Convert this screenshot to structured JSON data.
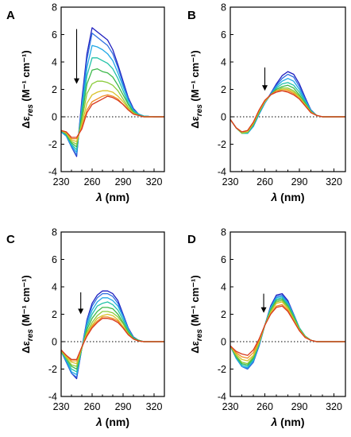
{
  "chart_data": [
    {
      "type": "line",
      "panel": "A",
      "xlabel_symbol": "λ",
      "xlabel_unit": " (nm)",
      "ylabel_main": "Δε",
      "ylabel_sub": "res",
      "ylabel_unit": " (M⁻¹ cm⁻¹)",
      "xlim": [
        230,
        330
      ],
      "ylim": [
        -4,
        8
      ],
      "xticks": [
        230,
        260,
        290,
        320
      ],
      "yticks": [
        -4,
        -2,
        0,
        2,
        4,
        6,
        8
      ],
      "zero_line": "dotted",
      "arrow": {
        "x": 245,
        "y_from": 6.4,
        "y_to": 2.4,
        "direction": "down"
      },
      "x": [
        230,
        235,
        240,
        245,
        250,
        255,
        260,
        265,
        270,
        275,
        280,
        285,
        290,
        295,
        300,
        305,
        310,
        320,
        330
      ],
      "colors": [
        "#1f1fbf",
        "#2f6fe0",
        "#20a8e6",
        "#22c2a8",
        "#3cb84a",
        "#8acb3a",
        "#d9c22a",
        "#ee8a22",
        "#d83a20"
      ],
      "series": [
        {
          "values": [
            -1.1,
            -1.4,
            -2.2,
            -2.9,
            1.2,
            4.6,
            6.5,
            6.2,
            5.9,
            5.6,
            4.9,
            3.8,
            2.6,
            1.4,
            0.6,
            0.2,
            0.05,
            0.0,
            0.0
          ]
        },
        {
          "values": [
            -1.1,
            -1.4,
            -2.2,
            -2.8,
            0.9,
            4.2,
            6.1,
            5.8,
            5.5,
            5.2,
            4.6,
            3.6,
            2.4,
            1.3,
            0.5,
            0.2,
            0.05,
            0.0,
            0.0
          ]
        },
        {
          "values": [
            -1.1,
            -1.4,
            -2.1,
            -2.6,
            0.6,
            3.6,
            5.2,
            5.1,
            4.9,
            4.6,
            4.1,
            3.2,
            2.2,
            1.2,
            0.5,
            0.2,
            0.05,
            0.0,
            0.0
          ]
        },
        {
          "values": [
            -1.0,
            -1.3,
            -2.0,
            -2.4,
            0.3,
            3.0,
            4.3,
            4.3,
            4.1,
            3.9,
            3.5,
            2.8,
            1.9,
            1.0,
            0.4,
            0.15,
            0.05,
            0.0,
            0.0
          ]
        },
        {
          "values": [
            -1.0,
            -1.3,
            -1.9,
            -2.2,
            0.0,
            2.4,
            3.4,
            3.5,
            3.3,
            3.2,
            2.9,
            2.3,
            1.6,
            0.9,
            0.35,
            0.1,
            0.0,
            0.0,
            0.0
          ]
        },
        {
          "values": [
            -1.0,
            -1.2,
            -1.8,
            -2.0,
            -0.3,
            1.7,
            2.4,
            2.6,
            2.6,
            2.5,
            2.3,
            1.9,
            1.3,
            0.7,
            0.3,
            0.1,
            0.0,
            0.0,
            0.0
          ]
        },
        {
          "values": [
            -1.0,
            -1.2,
            -1.7,
            -1.8,
            -0.6,
            1.0,
            1.6,
            1.8,
            1.9,
            1.9,
            1.8,
            1.5,
            1.1,
            0.6,
            0.25,
            0.1,
            0.0,
            0.0,
            0.0
          ]
        },
        {
          "values": [
            -1.0,
            -1.1,
            -1.6,
            -1.6,
            -0.8,
            0.5,
            1.1,
            1.3,
            1.5,
            1.6,
            1.5,
            1.3,
            0.9,
            0.5,
            0.2,
            0.1,
            0.0,
            0.0,
            0.0
          ]
        },
        {
          "values": [
            -1.0,
            -1.1,
            -1.5,
            -1.5,
            -0.9,
            0.3,
            0.9,
            1.1,
            1.3,
            1.5,
            1.4,
            1.2,
            0.9,
            0.5,
            0.2,
            0.1,
            0.0,
            0.0,
            0.0
          ]
        }
      ]
    },
    {
      "type": "line",
      "panel": "B",
      "xlabel_symbol": "λ",
      "xlabel_unit": " (nm)",
      "ylabel_main": "Δε",
      "ylabel_sub": "res",
      "ylabel_unit": " (M⁻¹ cm⁻¹)",
      "xlim": [
        230,
        330
      ],
      "ylim": [
        -4,
        8
      ],
      "xticks": [
        230,
        260,
        290,
        320
      ],
      "yticks": [
        -4,
        -2,
        0,
        2,
        4,
        6,
        8
      ],
      "zero_line": "dotted",
      "arrow": {
        "x": 260,
        "y_from": 3.6,
        "y_to": 1.9,
        "direction": "down"
      },
      "x": [
        230,
        235,
        240,
        245,
        250,
        255,
        260,
        265,
        270,
        275,
        280,
        285,
        290,
        295,
        300,
        305,
        310,
        320,
        330
      ],
      "colors": [
        "#1f1fbf",
        "#2f6fe0",
        "#20a8e6",
        "#22c2a8",
        "#3cb84a",
        "#8acb3a",
        "#d9c22a",
        "#ee8a22",
        "#d83a20"
      ],
      "series": [
        {
          "values": [
            -0.2,
            -0.8,
            -1.2,
            -1.2,
            -0.7,
            0.2,
            1.0,
            1.7,
            2.4,
            3.0,
            3.3,
            3.1,
            2.4,
            1.4,
            0.5,
            0.1,
            0.0,
            0.0,
            0.0
          ]
        },
        {
          "values": [
            -0.2,
            -0.8,
            -1.2,
            -1.2,
            -0.7,
            0.2,
            1.0,
            1.7,
            2.3,
            2.8,
            3.1,
            2.9,
            2.2,
            1.3,
            0.5,
            0.1,
            0.0,
            0.0,
            0.0
          ]
        },
        {
          "values": [
            -0.2,
            -0.8,
            -1.2,
            -1.2,
            -0.7,
            0.2,
            1.0,
            1.6,
            2.2,
            2.6,
            2.8,
            2.6,
            2.0,
            1.2,
            0.45,
            0.1,
            0.0,
            0.0,
            0.0
          ]
        },
        {
          "values": [
            -0.2,
            -0.8,
            -1.2,
            -1.2,
            -0.6,
            0.3,
            1.1,
            1.6,
            2.1,
            2.4,
            2.5,
            2.3,
            1.8,
            1.1,
            0.4,
            0.1,
            0.0,
            0.0,
            0.0
          ]
        },
        {
          "values": [
            -0.2,
            -0.8,
            -1.2,
            -1.1,
            -0.6,
            0.3,
            1.1,
            1.6,
            2.0,
            2.2,
            2.3,
            2.1,
            1.6,
            1.0,
            0.4,
            0.1,
            0.0,
            0.0,
            0.0
          ]
        },
        {
          "values": [
            -0.2,
            -0.8,
            -1.2,
            -1.1,
            -0.5,
            0.4,
            1.1,
            1.6,
            1.9,
            2.1,
            2.1,
            1.9,
            1.5,
            0.9,
            0.35,
            0.1,
            0.0,
            0.0,
            0.0
          ]
        },
        {
          "values": [
            -0.2,
            -0.8,
            -1.1,
            -1.1,
            -0.5,
            0.4,
            1.1,
            1.6,
            1.9,
            2.0,
            2.0,
            1.8,
            1.4,
            0.9,
            0.35,
            0.1,
            0.0,
            0.0,
            0.0
          ]
        },
        {
          "values": [
            -0.2,
            -0.8,
            -1.1,
            -1.0,
            -0.4,
            0.5,
            1.2,
            1.6,
            1.9,
            1.9,
            1.9,
            1.7,
            1.3,
            0.8,
            0.3,
            0.1,
            0.0,
            0.0,
            0.0
          ]
        },
        {
          "values": [
            -0.2,
            -0.8,
            -1.1,
            -1.0,
            -0.4,
            0.5,
            1.2,
            1.6,
            1.8,
            1.9,
            1.8,
            1.6,
            1.3,
            0.8,
            0.3,
            0.1,
            0.0,
            0.0,
            0.0
          ]
        }
      ]
    },
    {
      "type": "line",
      "panel": "C",
      "xlabel_symbol": "λ",
      "xlabel_unit": " (nm)",
      "ylabel_main": "Δε",
      "ylabel_sub": "res",
      "ylabel_unit": " (M⁻¹ cm⁻¹)",
      "xlim": [
        230,
        330
      ],
      "ylim": [
        -4,
        8
      ],
      "xticks": [
        230,
        260,
        290,
        320
      ],
      "yticks": [
        -4,
        -2,
        0,
        2,
        4,
        6,
        8
      ],
      "zero_line": "dotted",
      "arrow": {
        "x": 249,
        "y_from": 3.6,
        "y_to": 2.0,
        "direction": "down"
      },
      "x": [
        230,
        235,
        240,
        245,
        250,
        255,
        260,
        265,
        270,
        275,
        280,
        285,
        290,
        295,
        300,
        305,
        310,
        320,
        330
      ],
      "colors": [
        "#1f1fbf",
        "#2f6fe0",
        "#20a8e6",
        "#22c2a8",
        "#3cb84a",
        "#8acb3a",
        "#d9c22a",
        "#ee8a22",
        "#d83a20"
      ],
      "series": [
        {
          "values": [
            -0.7,
            -1.5,
            -2.3,
            -2.7,
            -0.5,
            1.6,
            2.8,
            3.4,
            3.7,
            3.7,
            3.5,
            3.0,
            2.0,
            1.0,
            0.35,
            0.1,
            0.0,
            0.0,
            0.0
          ]
        },
        {
          "values": [
            -0.7,
            -1.5,
            -2.3,
            -2.6,
            -0.5,
            1.5,
            2.6,
            3.2,
            3.5,
            3.5,
            3.3,
            2.8,
            1.9,
            0.95,
            0.3,
            0.1,
            0.0,
            0.0,
            0.0
          ]
        },
        {
          "values": [
            -0.7,
            -1.4,
            -2.2,
            -2.4,
            -0.5,
            1.3,
            2.3,
            2.9,
            3.2,
            3.2,
            3.0,
            2.6,
            1.8,
            0.9,
            0.3,
            0.1,
            0.0,
            0.0,
            0.0
          ]
        },
        {
          "values": [
            -0.7,
            -1.3,
            -2.0,
            -2.2,
            -0.5,
            1.1,
            2.0,
            2.6,
            2.8,
            2.9,
            2.7,
            2.3,
            1.6,
            0.8,
            0.3,
            0.1,
            0.0,
            0.0,
            0.0
          ]
        },
        {
          "values": [
            -0.7,
            -1.2,
            -1.8,
            -2.0,
            -0.5,
            0.9,
            1.7,
            2.2,
            2.5,
            2.5,
            2.4,
            2.0,
            1.4,
            0.7,
            0.25,
            0.1,
            0.0,
            0.0,
            0.0
          ]
        },
        {
          "values": [
            -0.7,
            -1.2,
            -1.7,
            -1.8,
            -0.5,
            0.7,
            1.4,
            1.9,
            2.2,
            2.2,
            2.1,
            1.8,
            1.3,
            0.6,
            0.2,
            0.05,
            0.0,
            0.0,
            0.0
          ]
        },
        {
          "values": [
            -0.6,
            -1.1,
            -1.5,
            -1.6,
            -0.4,
            0.6,
            1.2,
            1.7,
            1.9,
            2.0,
            1.9,
            1.6,
            1.1,
            0.55,
            0.2,
            0.05,
            0.0,
            0.0,
            0.0
          ]
        },
        {
          "values": [
            -0.6,
            -1.0,
            -1.4,
            -1.4,
            -0.4,
            0.5,
            1.1,
            1.5,
            1.8,
            1.8,
            1.7,
            1.5,
            1.0,
            0.5,
            0.2,
            0.05,
            0.0,
            0.0,
            0.0
          ]
        },
        {
          "values": [
            -0.6,
            -1.0,
            -1.3,
            -1.3,
            -0.4,
            0.4,
            1.0,
            1.4,
            1.7,
            1.7,
            1.6,
            1.4,
            1.0,
            0.5,
            0.2,
            0.05,
            0.0,
            0.0,
            0.0
          ]
        }
      ]
    },
    {
      "type": "line",
      "panel": "D",
      "xlabel_symbol": "λ",
      "xlabel_unit": " (nm)",
      "ylabel_main": "Δε",
      "ylabel_sub": "res",
      "ylabel_unit": " (M⁻¹ cm⁻¹)",
      "xlim": [
        230,
        330
      ],
      "ylim": [
        -4,
        8
      ],
      "xticks": [
        230,
        260,
        290,
        320
      ],
      "yticks": [
        -4,
        -2,
        0,
        2,
        4,
        6,
        8
      ],
      "zero_line": "dotted",
      "arrow": {
        "x": 259,
        "y_from": 3.5,
        "y_to": 2.1,
        "direction": "down"
      },
      "x": [
        230,
        235,
        240,
        245,
        250,
        255,
        260,
        265,
        270,
        275,
        280,
        285,
        290,
        295,
        300,
        305,
        310,
        320,
        330
      ],
      "colors": [
        "#1f1fbf",
        "#2f6fe0",
        "#20a8e6",
        "#22c2a8",
        "#3cb84a",
        "#8acb3a",
        "#d9c22a",
        "#ee8a22",
        "#d83a20"
      ],
      "series": [
        {
          "values": [
            -0.3,
            -1.2,
            -1.8,
            -2.0,
            -1.5,
            -0.3,
            1.2,
            2.6,
            3.4,
            3.5,
            3.0,
            2.0,
            1.0,
            0.4,
            0.1,
            0.0,
            0.0,
            0.0,
            0.0
          ]
        },
        {
          "values": [
            -0.3,
            -1.2,
            -1.8,
            -2.0,
            -1.5,
            -0.3,
            1.2,
            2.5,
            3.3,
            3.4,
            2.9,
            2.0,
            1.0,
            0.4,
            0.1,
            0.0,
            0.0,
            0.0,
            0.0
          ]
        },
        {
          "values": [
            -0.3,
            -1.2,
            -1.8,
            -1.9,
            -1.4,
            -0.2,
            1.2,
            2.5,
            3.2,
            3.3,
            2.8,
            1.9,
            1.0,
            0.4,
            0.1,
            0.0,
            0.0,
            0.0,
            0.0
          ]
        },
        {
          "values": [
            -0.3,
            -1.1,
            -1.7,
            -1.8,
            -1.3,
            -0.2,
            1.2,
            2.4,
            3.1,
            3.2,
            2.7,
            1.9,
            1.0,
            0.4,
            0.1,
            0.0,
            0.0,
            0.0,
            0.0
          ]
        },
        {
          "values": [
            -0.3,
            -1.1,
            -1.6,
            -1.7,
            -1.2,
            -0.1,
            1.2,
            2.3,
            3.0,
            3.1,
            2.6,
            1.8,
            0.95,
            0.4,
            0.1,
            0.0,
            0.0,
            0.0,
            0.0
          ]
        },
        {
          "values": [
            -0.3,
            -1.0,
            -1.5,
            -1.6,
            -1.1,
            -0.1,
            1.2,
            2.2,
            2.9,
            3.0,
            2.5,
            1.7,
            0.9,
            0.35,
            0.1,
            0.0,
            0.0,
            0.0,
            0.0
          ]
        },
        {
          "values": [
            -0.3,
            -0.9,
            -1.3,
            -1.4,
            -1.0,
            0.0,
            1.2,
            2.1,
            2.8,
            2.9,
            2.4,
            1.6,
            0.85,
            0.35,
            0.1,
            0.0,
            0.0,
            0.0,
            0.0
          ]
        },
        {
          "values": [
            -0.3,
            -0.8,
            -1.1,
            -1.2,
            -0.8,
            0.1,
            1.2,
            2.0,
            2.6,
            2.7,
            2.3,
            1.5,
            0.8,
            0.3,
            0.1,
            0.0,
            0.0,
            0.0,
            0.0
          ]
        },
        {
          "values": [
            -0.3,
            -0.7,
            -0.9,
            -1.0,
            -0.6,
            0.2,
            1.2,
            2.0,
            2.5,
            2.6,
            2.2,
            1.5,
            0.8,
            0.3,
            0.1,
            0.0,
            0.0,
            0.0,
            0.0
          ]
        }
      ]
    }
  ]
}
